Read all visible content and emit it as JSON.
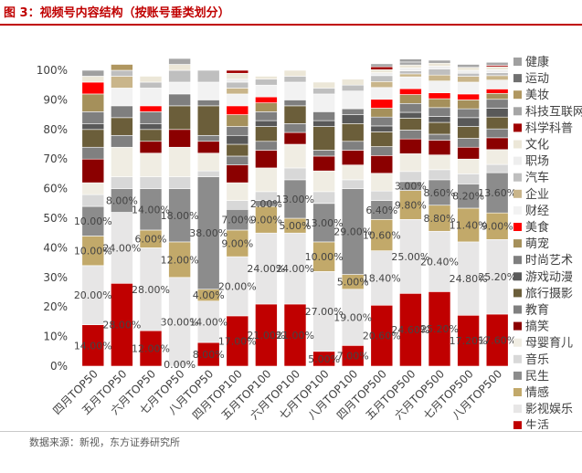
{
  "title": "图 3：视频号内容结构（按账号垂类划分）",
  "source": "数据来源：新视，东方证券研究所",
  "chart_data": {
    "type": "bar",
    "stacked": true,
    "percent_stacked": true,
    "categories": [
      "四月TOP50",
      "五月TOP50",
      "六月TOP50",
      "七月TOP50",
      "八月TOP50",
      "四月TOP100",
      "五月TOP100",
      "六月TOP100",
      "七月TOP100",
      "八月TOP100",
      "四月TOP500",
      "五月TOP500",
      "六月TOP500",
      "七月TOP500",
      "八月TOP500"
    ],
    "y_ticks": [
      "0%",
      "10%",
      "20%",
      "30%",
      "40%",
      "50%",
      "60%",
      "70%",
      "80%",
      "90%",
      "100%"
    ],
    "ylim": [
      0,
      100
    ],
    "legend_position": "right",
    "series": [
      {
        "name": "生活",
        "color": "#c00000",
        "values": [
          14,
          28,
          12,
          0,
          8,
          17,
          21,
          21,
          5,
          7,
          20.6,
          24.6,
          25.2,
          17.2,
          17.6
        ],
        "labels": [
          "14.00%",
          "28.00%",
          "12.00%",
          "0.00%",
          "8.00%",
          "17.00%",
          "21.00%",
          "21.00%",
          "5.00%",
          "7.00%",
          "20.60%",
          "24.60%",
          "25.20%",
          "17.20%",
          "17.60%"
        ]
      },
      {
        "name": "影视娱乐",
        "color": "#e7e6e6",
        "values": [
          20,
          24,
          28,
          30,
          14,
          20,
          24,
          24,
          27,
          19,
          18.4,
          25,
          20.4,
          24.8,
          25.2
        ],
        "labels": [
          "20.00%",
          "24.00%",
          "28.00%",
          "30.00%",
          "14.00%",
          "20.00%",
          "24.00%",
          "24.00%",
          "27.00%",
          "19.00%",
          "18.40%",
          "25.00%",
          "20.40%",
          "24.80%",
          "25.20%"
        ]
      },
      {
        "name": "情感",
        "color": "#c2a96a",
        "values": [
          10,
          0,
          6,
          12,
          4,
          9,
          9,
          5,
          10,
          5,
          10.6,
          9.8,
          8.8,
          11.4,
          9
        ],
        "labels": [
          "10.00%",
          "",
          "6.00%",
          "12.00%",
          "4.00%",
          "9.00%",
          "9.00%",
          "5.00%",
          "10.00%",
          "5.00%",
          "10.60%",
          "9.80%",
          "8.80%",
          "11.40%",
          "9.00%"
        ]
      },
      {
        "name": "民生",
        "color": "#8c8c8c",
        "values": [
          10,
          8,
          14,
          18,
          38,
          7,
          2,
          13,
          13,
          29,
          6.4,
          3,
          8.6,
          8.2,
          13.6
        ],
        "labels": [
          "10.00%",
          "8.00%",
          "14.00%",
          "18.00%",
          "38.00%",
          "7.00%",
          "2.00%",
          "13.00%",
          "13.00%",
          "29.00%",
          "6.40%",
          "3.00%",
          "8.60%",
          "8.20%",
          "13.60%"
        ]
      },
      {
        "name": "音乐",
        "color": "#d8d8d8",
        "values": [
          4,
          4,
          4,
          4,
          2,
          3,
          3,
          4,
          4,
          3,
          3.2,
          3.4,
          3.4,
          3.4,
          2.8
        ]
      },
      {
        "name": "母婴育儿",
        "color": "#f0ede3",
        "values": [
          4,
          10,
          8,
          10,
          6,
          6,
          8,
          8,
          7,
          5,
          6,
          6,
          5,
          5,
          5
        ]
      },
      {
        "name": "搞笑",
        "color": "#8b0000",
        "values": [
          8,
          0,
          4,
          6,
          4,
          6,
          6,
          4,
          5,
          5,
          6,
          5,
          5,
          4,
          4
        ]
      },
      {
        "name": "教育",
        "color": "#808080",
        "values": [
          4,
          4,
          0,
          0,
          2,
          3,
          3,
          3,
          2,
          3,
          3,
          3,
          2,
          3,
          3
        ]
      },
      {
        "name": "旅行摄影",
        "color": "#6b5e3a",
        "values": [
          6,
          6,
          4,
          8,
          10,
          4,
          5,
          6,
          8,
          6,
          5,
          4,
          4,
          4,
          4
        ]
      },
      {
        "name": "游戏动漫",
        "color": "#595959",
        "values": [
          2,
          0,
          2,
          0,
          0,
          3,
          2,
          0,
          2,
          3,
          2,
          2,
          2,
          3,
          3
        ]
      },
      {
        "name": "时尚艺术",
        "color": "#7f7f7f",
        "values": [
          4,
          4,
          4,
          4,
          2,
          3,
          3,
          2,
          3,
          2,
          3,
          3,
          3,
          3,
          3
        ]
      },
      {
        "name": "萌宠",
        "color": "#a5905b",
        "values": [
          6,
          0,
          0,
          0,
          0,
          4,
          3,
          0,
          0,
          0,
          3,
          3,
          3,
          3,
          2
        ]
      },
      {
        "name": "美食",
        "color": "#ff0000",
        "values": [
          4,
          0,
          2,
          0,
          0,
          3,
          2,
          0,
          0,
          0,
          3,
          2,
          2,
          2,
          1.5
        ]
      },
      {
        "name": "财经",
        "color": "#f2f2f2",
        "values": [
          0,
          6,
          6,
          4,
          6,
          4,
          4,
          6,
          6,
          6,
          4,
          4,
          4,
          4,
          3
        ]
      },
      {
        "name": "企业",
        "color": "#c9b58a",
        "values": [
          0,
          4,
          0,
          0,
          0,
          2,
          0,
          0,
          0,
          0,
          2,
          1,
          2,
          2,
          1.5
        ]
      },
      {
        "name": "汽车",
        "color": "#bfbfbf",
        "values": [
          0,
          2,
          2,
          4,
          4,
          2,
          2,
          2,
          2,
          2,
          2,
          1,
          2,
          1,
          1
        ]
      },
      {
        "name": "职场",
        "color": "#eeeeee",
        "values": [
          0,
          0,
          0,
          0,
          0,
          1,
          0,
          0,
          0,
          0,
          1,
          1,
          1,
          1,
          1
        ]
      },
      {
        "name": "文化",
        "color": "#ece7d8",
        "values": [
          2,
          0,
          2,
          2,
          0,
          2,
          1,
          2,
          2,
          2,
          1,
          1,
          1,
          1,
          1
        ]
      },
      {
        "name": "科学科普",
        "color": "#a00000",
        "values": [
          0,
          0,
          0,
          0,
          0,
          1,
          0,
          0,
          0,
          0,
          1,
          0,
          0,
          0,
          0.5
        ]
      },
      {
        "name": "科技互联网",
        "color": "#a6a6a6",
        "values": [
          0,
          0,
          0,
          2,
          0,
          0,
          0,
          0,
          0,
          0,
          1,
          1,
          1,
          1,
          1
        ]
      },
      {
        "name": "美妆",
        "color": "#b09760",
        "values": [
          0,
          2,
          0,
          0,
          0,
          0,
          0,
          0,
          0,
          0,
          0,
          0,
          0,
          0,
          0
        ]
      },
      {
        "name": "运动",
        "color": "#707070",
        "values": [
          0,
          0,
          0,
          0,
          0,
          0,
          0,
          0,
          0,
          0,
          0,
          0,
          0,
          0,
          0
        ]
      },
      {
        "name": "健康",
        "color": "#a0a0a0",
        "values": [
          2,
          0,
          0,
          0,
          0,
          0,
          0,
          0,
          0,
          0,
          0,
          1,
          0,
          0,
          0
        ]
      }
    ]
  }
}
